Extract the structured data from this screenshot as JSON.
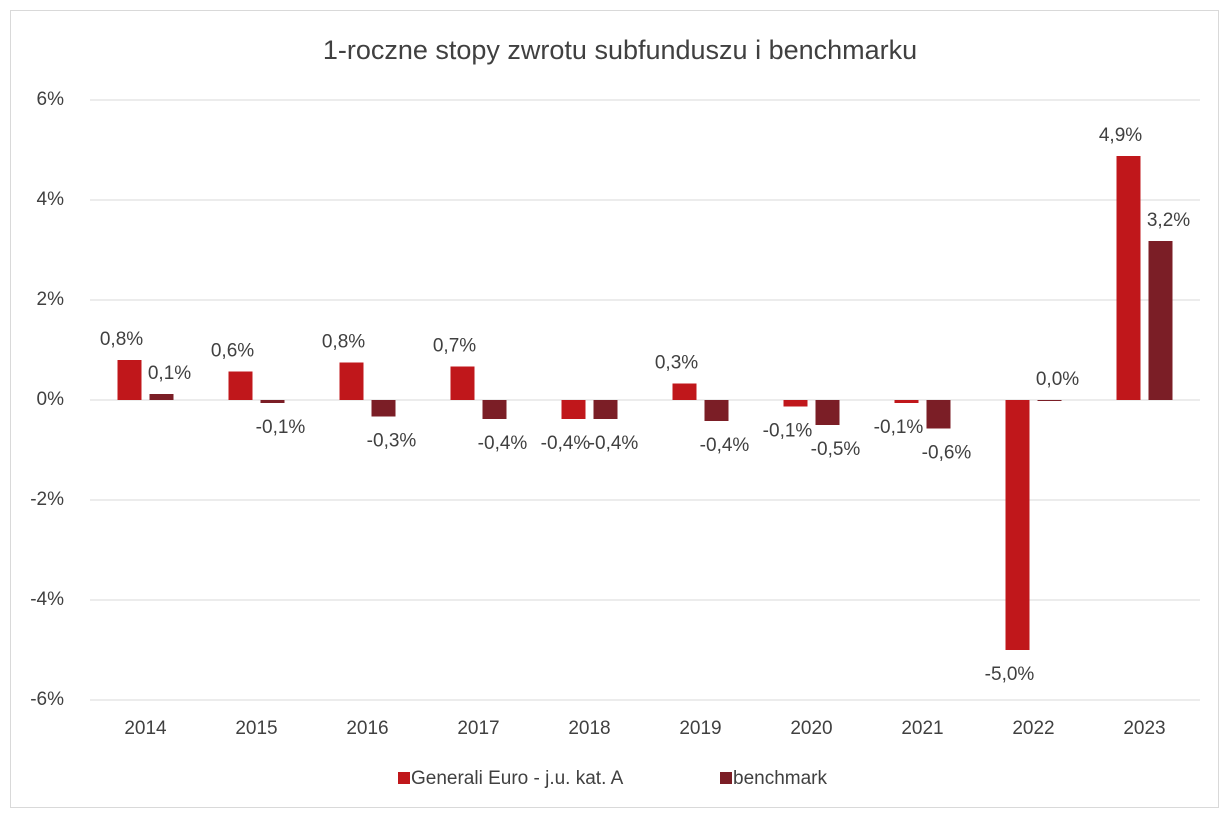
{
  "chart_data": {
    "type": "bar",
    "title": "1-roczne stopy zwrotu subfunduszu i benchmarku",
    "categories": [
      "2014",
      "2015",
      "2016",
      "2017",
      "2018",
      "2019",
      "2020",
      "2021",
      "2022",
      "2023"
    ],
    "series": [
      {
        "name": "Generali Euro - j.u. kat. A",
        "color": "#c0171b",
        "values": [
          0.8,
          0.57,
          0.75,
          0.67,
          -0.38,
          0.33,
          -0.13,
          -0.06,
          -5.0,
          4.88
        ],
        "value_labels": [
          "0,8%",
          "0,6%",
          "0,8%",
          "0,7%",
          "-0,4%",
          "0,3%",
          "-0,1%",
          "-0,1%",
          "-5,0%",
          "4,9%"
        ]
      },
      {
        "name": "benchmark",
        "color": "#7b1e26",
        "values": [
          0.12,
          -0.06,
          -0.33,
          -0.38,
          -0.38,
          -0.42,
          -0.5,
          -0.57,
          0.0,
          3.18
        ],
        "value_labels": [
          "0,1%",
          "-0,1%",
          "-0,3%",
          "-0,4%",
          "-0,4%",
          "-0,4%",
          "-0,5%",
          "-0,6%",
          "0,0%",
          "3,2%"
        ]
      }
    ],
    "ylim": [
      -6,
      6
    ],
    "yticks": [
      {
        "value": -6,
        "label": "-6%"
      },
      {
        "value": -4,
        "label": "-4%"
      },
      {
        "value": -2,
        "label": "-2%"
      },
      {
        "value": 0,
        "label": "0%"
      },
      {
        "value": 2,
        "label": "2%"
      },
      {
        "value": 4,
        "label": "4%"
      },
      {
        "value": 6,
        "label": "6%"
      }
    ],
    "grid": true,
    "legend": "bottom"
  }
}
